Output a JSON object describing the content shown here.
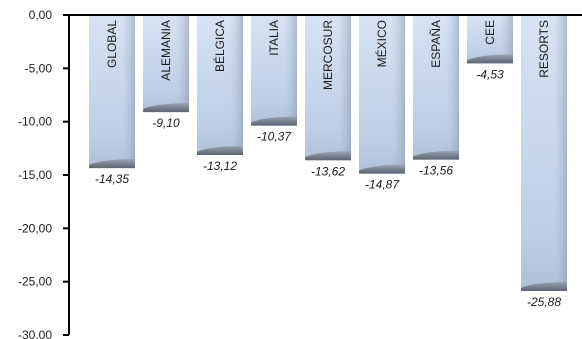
{
  "chart_data": {
    "type": "bar",
    "title": "",
    "xlabel": "",
    "ylabel": "",
    "categories": [
      "GLOBAL",
      "ALEMANIA",
      "BÉLGICA",
      "ITALIA",
      "MERCOSUR",
      "MÉXICO",
      "ESPAÑA",
      "CEE",
      "RESORTS"
    ],
    "values": [
      -14.35,
      -9.1,
      -13.12,
      -10.37,
      -13.62,
      -14.87,
      -13.56,
      -4.53,
      -25.88
    ],
    "value_labels": [
      "-14,35",
      "-9,10",
      "-13,12",
      "-10,37",
      "-13,62",
      "-14,87",
      "-13,56",
      "-4,53",
      "-25,88"
    ],
    "ylim": [
      -30,
      0
    ],
    "y_ticks": [
      0,
      -5,
      -10,
      -15,
      -20,
      -25,
      -30
    ],
    "y_tick_labels": [
      "0,00",
      "-5,00",
      "-10,00",
      "-15,00",
      "-20,00",
      "-25,00",
      "-30,00"
    ],
    "grid": false,
    "legend": "none",
    "category_label_placement": "inside-bar-vertical",
    "colors": {
      "bar_top": "#d4e1f3",
      "bar_mid": "#c3d3ea",
      "bar_shadow": "#7d8696",
      "axis": "#000000"
    }
  }
}
